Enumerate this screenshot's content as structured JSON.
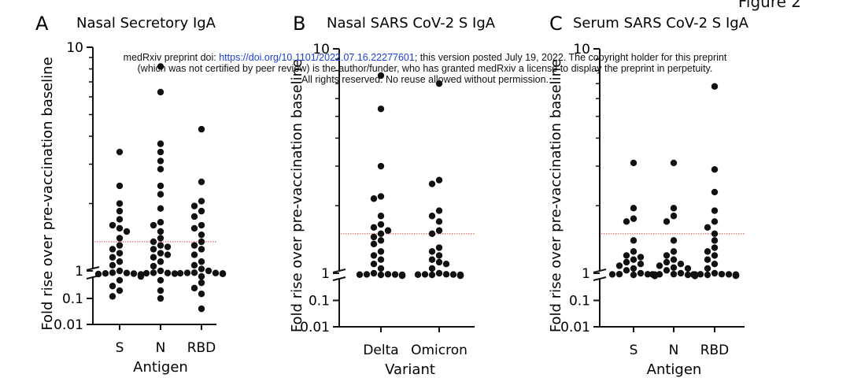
{
  "figure_label": "Figure 2",
  "watermark": {
    "prefix": "medRxiv preprint doi: ",
    "doi_link": "https://doi.org/10.1101/2022.07.16.22277601",
    "posted": "; this version posted July 19, 2022. The copyright holder for this preprint",
    "line2": "(which was not certified by peer review) is the author/funder, who has granted medRxiv a license to display the preprint in perpetuity.",
    "line3": "All rights reserved. No reuse allowed without permission."
  },
  "colors": {
    "points": "#111111",
    "threshold": "#d64541",
    "axis": "#111111"
  },
  "chart_data": [
    {
      "type": "scatter",
      "panel": "A",
      "title": "Nasal Secretory IgA",
      "xlabel": "Antigen",
      "ylabel": "Fold rise over pre-vaccination baseline",
      "y_scale": "log, broken axis",
      "ylim": [
        0.01,
        10
      ],
      "yticks": [
        "10",
        "1",
        "0.1",
        "0.01"
      ],
      "threshold": 1.35,
      "categories": [
        "S",
        "N",
        "RBD"
      ],
      "series": [
        {
          "category": "S",
          "values": [
            3.4,
            2.4,
            2.0,
            1.85,
            1.7,
            1.6,
            1.55,
            1.5,
            1.4,
            1.3,
            1.25,
            1.2,
            1.15,
            1.1,
            1.06,
            1.0,
            0.98,
            0.95,
            0.92,
            0.9,
            0.87,
            0.84,
            0.8,
            0.7,
            0.5,
            0.3,
            0.2,
            0.12
          ]
        },
        {
          "category": "N",
          "values": [
            8.2,
            6.3,
            3.7,
            3.4,
            3.1,
            2.85,
            2.4,
            2.2,
            1.9,
            1.65,
            1.6,
            1.5,
            1.4,
            1.35,
            1.3,
            1.28,
            1.25,
            1.2,
            1.18,
            1.15,
            1.1,
            1.05,
            1.0,
            0.97,
            0.95,
            0.93,
            0.9,
            0.5,
            0.2,
            0.1
          ]
        },
        {
          "category": "RBD",
          "values": [
            4.3,
            2.5,
            2.05,
            1.95,
            1.85,
            1.75,
            1.6,
            1.55,
            1.45,
            1.35,
            1.3,
            1.25,
            1.18,
            1.1,
            1.06,
            1.02,
            1.0,
            0.98,
            0.96,
            0.95,
            0.93,
            0.91,
            0.9,
            0.88,
            0.7,
            0.4,
            0.25,
            0.15,
            0.04
          ]
        }
      ]
    },
    {
      "type": "scatter",
      "panel": "B",
      "title": "Nasal SARS CoV-2 S IgA",
      "xlabel": "Variant",
      "ylabel": "Fold rise over pre-vaccination baseline",
      "y_scale": "log, broken axis",
      "ylim": [
        0.01,
        10
      ],
      "yticks": [
        "10",
        "1",
        "0.1",
        "0.01"
      ],
      "threshold": 1.5,
      "categories": [
        "Delta",
        "Omicron"
      ],
      "series": [
        {
          "category": "Delta",
          "values": [
            7.6,
            5.4,
            3.0,
            2.2,
            2.15,
            1.8,
            1.65,
            1.6,
            1.55,
            1.5,
            1.45,
            1.4,
            1.35,
            1.25,
            1.2,
            1.15,
            1.1,
            1.05,
            1.0,
            0.98,
            0.97,
            0.96,
            0.95,
            0.94,
            0.93,
            0.92,
            0.91,
            0.9,
            0.88,
            0.86
          ]
        },
        {
          "category": "Omicron",
          "values": [
            7.0,
            2.6,
            2.5,
            1.9,
            1.8,
            1.7,
            1.55,
            1.5,
            1.3,
            1.25,
            1.2,
            1.15,
            1.12,
            1.1,
            1.05,
            1.0,
            0.98,
            0.97,
            0.96,
            0.95,
            0.94,
            0.93,
            0.92,
            0.91,
            0.9,
            0.88,
            0.86
          ]
        }
      ]
    },
    {
      "type": "scatter",
      "panel": "C",
      "title": "Serum SARS CoV-2 S IgA",
      "xlabel": "Antigen",
      "ylabel": "Fold rise over pre-vaccination baseline",
      "y_scale": "log, broken axis",
      "ylim": [
        0.01,
        10
      ],
      "yticks": [
        "10",
        "1",
        "0.1",
        "0.01"
      ],
      "threshold": 1.5,
      "categories": [
        "S",
        "N",
        "RBD"
      ],
      "series": [
        {
          "category": "S",
          "values": [
            3.1,
            1.95,
            1.75,
            1.7,
            1.4,
            1.25,
            1.2,
            1.18,
            1.15,
            1.12,
            1.1,
            1.08,
            1.05,
            1.03,
            1.0,
            0.99,
            0.98,
            0.97,
            0.95,
            0.94,
            0.93,
            0.92,
            0.91,
            0.9,
            0.88,
            0.87,
            0.86,
            0.85
          ]
        },
        {
          "category": "N",
          "values": [
            3.1,
            1.95,
            1.8,
            1.7,
            1.4,
            1.25,
            1.2,
            1.15,
            1.12,
            1.1,
            1.08,
            1.06,
            1.05,
            1.03,
            1.0,
            0.99,
            0.98,
            0.97,
            0.96,
            0.95,
            0.94,
            0.93,
            0.92,
            0.91,
            0.9,
            0.89,
            0.88,
            0.87,
            0.86,
            0.85
          ]
        },
        {
          "category": "RBD",
          "values": [
            6.8,
            2.9,
            2.3,
            1.9,
            1.7,
            1.6,
            1.5,
            1.4,
            1.3,
            1.25,
            1.2,
            1.15,
            1.1,
            1.05,
            1.0,
            0.99,
            0.98,
            0.97,
            0.96,
            0.95,
            0.94,
            0.93,
            0.92,
            0.91,
            0.9,
            0.89,
            0.88,
            0.87,
            0.86
          ]
        }
      ]
    }
  ]
}
